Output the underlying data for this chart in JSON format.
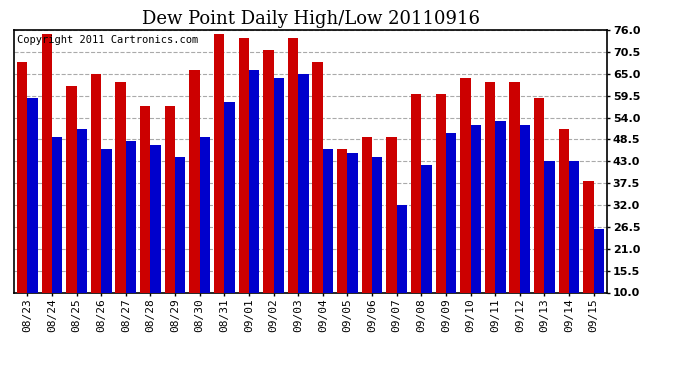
{
  "title": "Dew Point Daily High/Low 20110916",
  "copyright": "Copyright 2011 Cartronics.com",
  "dates": [
    "08/23",
    "08/24",
    "08/25",
    "08/26",
    "08/27",
    "08/28",
    "08/29",
    "08/30",
    "08/31",
    "09/01",
    "09/02",
    "09/03",
    "09/04",
    "09/05",
    "09/06",
    "09/07",
    "09/08",
    "09/09",
    "09/10",
    "09/11",
    "09/12",
    "09/13",
    "09/14",
    "09/15"
  ],
  "high": [
    68,
    75,
    62,
    65,
    63,
    57,
    57,
    66,
    75,
    74,
    71,
    74,
    68,
    46,
    49,
    49,
    60,
    60,
    64,
    63,
    63,
    59,
    51,
    38
  ],
  "low": [
    59,
    49,
    51,
    46,
    48,
    47,
    44,
    49,
    58,
    66,
    64,
    65,
    46,
    45,
    44,
    32,
    42,
    50,
    52,
    53,
    52,
    43,
    43,
    26
  ],
  "high_color": "#cc0000",
  "low_color": "#0000cc",
  "ylim_min": 10.0,
  "ylim_max": 76.0,
  "yticks": [
    10.0,
    15.5,
    21.0,
    26.5,
    32.0,
    37.5,
    43.0,
    48.5,
    54.0,
    59.5,
    65.0,
    70.5,
    76.0
  ],
  "background_color": "#ffffff",
  "grid_color": "#aaaaaa",
  "title_fontsize": 13,
  "tick_fontsize": 8,
  "copyright_fontsize": 7.5
}
